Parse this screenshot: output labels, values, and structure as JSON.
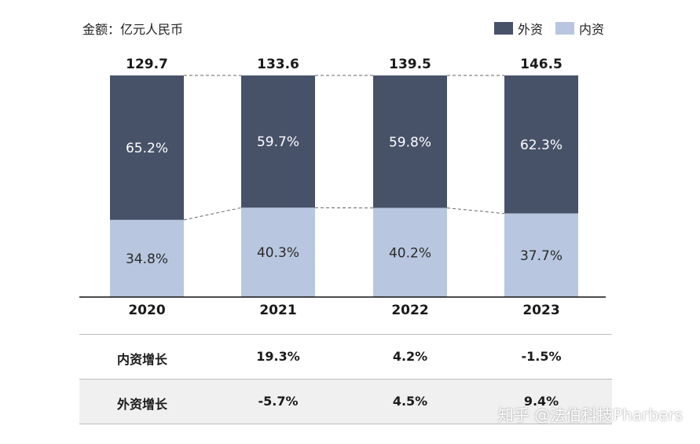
{
  "unit_label": "金额：亿元人民币",
  "legend": [
    {
      "name": "外资",
      "color": "#475269"
    },
    {
      "name": "内资",
      "color": "#b8c7df"
    }
  ],
  "chart_data": {
    "type": "bar",
    "stacked": "percent",
    "categories": [
      "2020",
      "2021",
      "2022",
      "2023"
    ],
    "totals": [
      "129.7",
      "133.6",
      "139.5",
      "146.5"
    ],
    "series": [
      {
        "name": "外资",
        "values": [
          65.2,
          59.7,
          59.8,
          62.3
        ],
        "labels": [
          "65.2%",
          "59.7%",
          "59.8%",
          "62.3%"
        ],
        "color": "#475269"
      },
      {
        "name": "内资",
        "values": [
          34.8,
          40.3,
          40.2,
          37.7
        ],
        "labels": [
          "34.8%",
          "40.3%",
          "40.2%",
          "37.7%"
        ],
        "color": "#b8c7df"
      }
    ],
    "ylim": [
      0,
      100
    ]
  },
  "growth_table": {
    "rows": [
      {
        "label": "内资增长",
        "values": [
          "",
          "19.3%",
          "4.2%",
          "-1.5%"
        ]
      },
      {
        "label": "外资增长",
        "values": [
          "",
          "-5.7%",
          "4.5%",
          "9.4%"
        ]
      }
    ]
  },
  "watermark": "知乎 @法伯科技Pharbers"
}
